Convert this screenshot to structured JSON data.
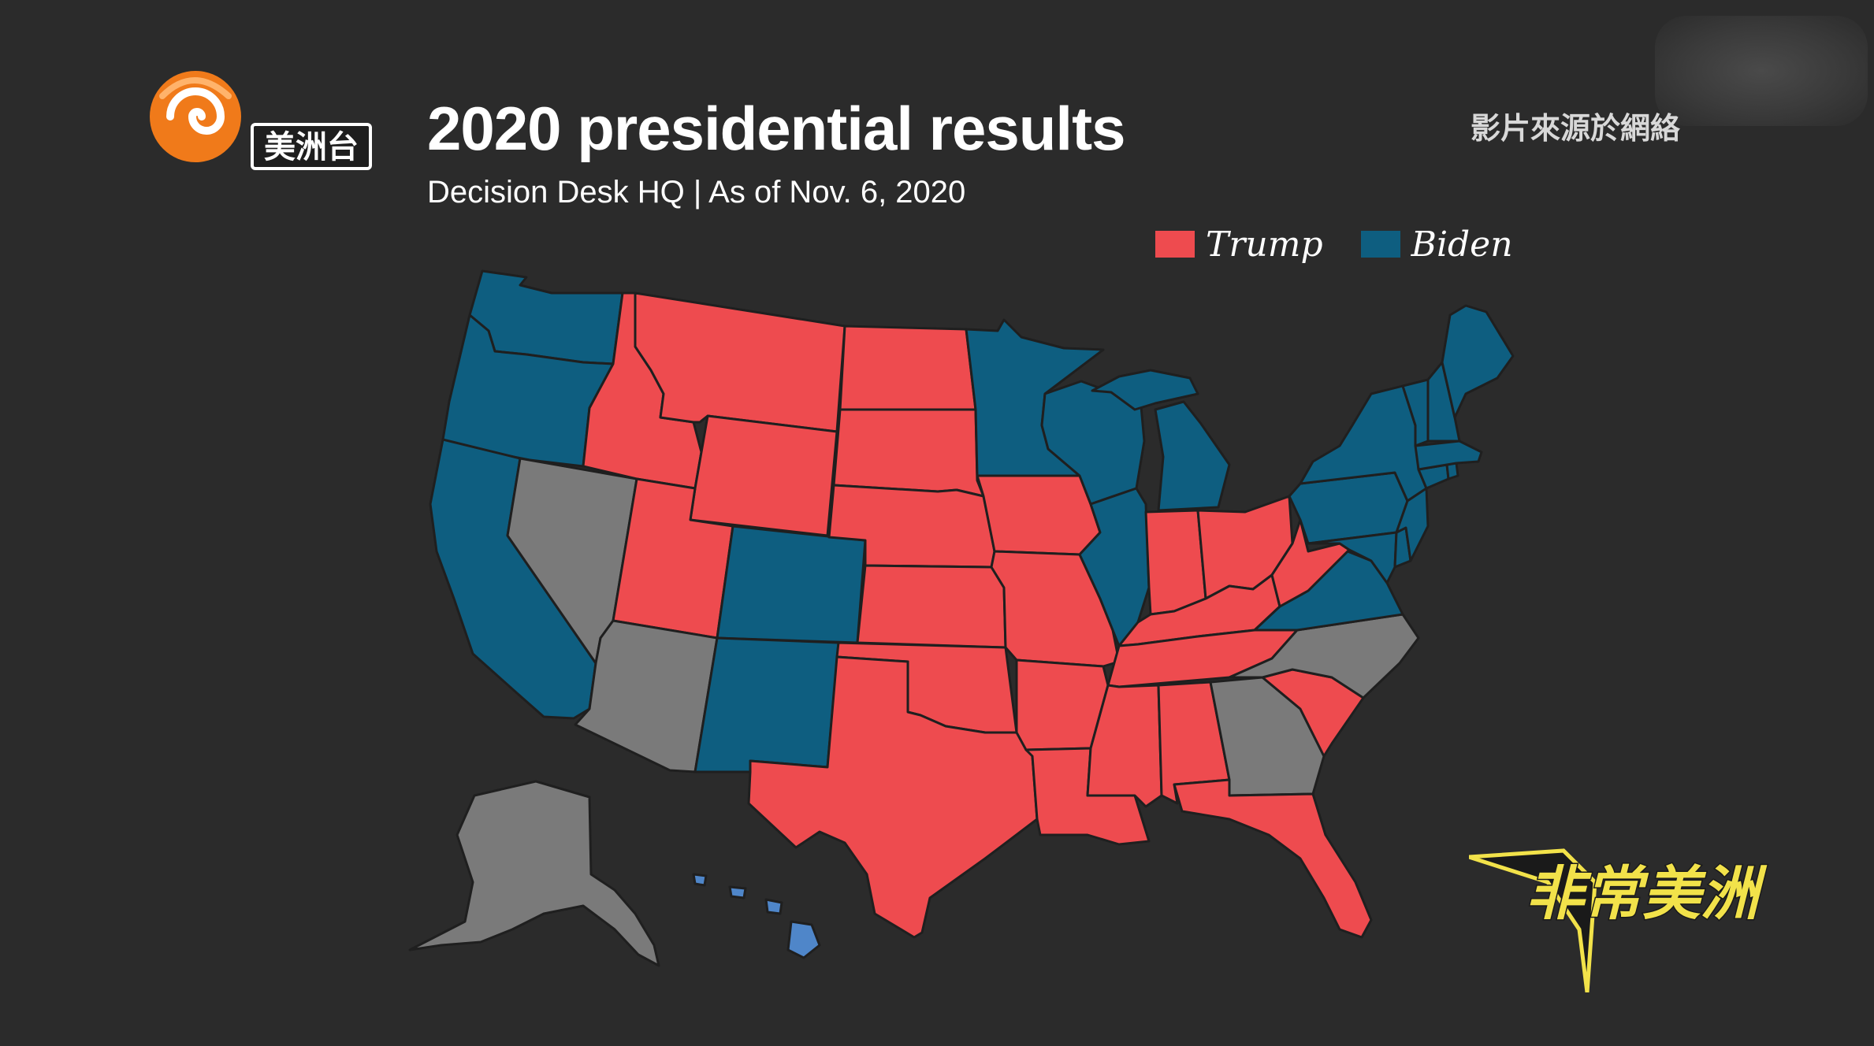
{
  "header": {
    "title": "2020 presidential results",
    "subtitle": "Decision Desk HQ | As of Nov. 6, 2020",
    "source_note": "影片來源於網絡"
  },
  "logos": {
    "channel": "美洲台",
    "program": "非常美洲"
  },
  "legend": [
    {
      "label": "Trump",
      "color": "#ee4b4f"
    },
    {
      "label": "Biden",
      "color": "#0e5e80"
    }
  ],
  "colors": {
    "trump": "#ee4b4f",
    "biden": "#0e5e80",
    "undecided": "#7a7a7a",
    "hawaii": "#4f86c9",
    "background": "#2b2b2b"
  },
  "states": [
    {
      "name": "Washington",
      "result": "biden"
    },
    {
      "name": "Oregon",
      "result": "biden"
    },
    {
      "name": "California",
      "result": "biden"
    },
    {
      "name": "Nevada",
      "result": "undecided"
    },
    {
      "name": "Idaho",
      "result": "trump"
    },
    {
      "name": "Montana",
      "result": "trump"
    },
    {
      "name": "Wyoming",
      "result": "trump"
    },
    {
      "name": "Utah",
      "result": "trump"
    },
    {
      "name": "Arizona",
      "result": "undecided"
    },
    {
      "name": "Colorado",
      "result": "biden"
    },
    {
      "name": "New Mexico",
      "result": "biden"
    },
    {
      "name": "North Dakota",
      "result": "trump"
    },
    {
      "name": "South Dakota",
      "result": "trump"
    },
    {
      "name": "Nebraska",
      "result": "trump"
    },
    {
      "name": "Kansas",
      "result": "trump"
    },
    {
      "name": "Oklahoma",
      "result": "trump"
    },
    {
      "name": "Texas",
      "result": "trump"
    },
    {
      "name": "Minnesota",
      "result": "biden"
    },
    {
      "name": "Iowa",
      "result": "trump"
    },
    {
      "name": "Missouri",
      "result": "trump"
    },
    {
      "name": "Arkansas",
      "result": "trump"
    },
    {
      "name": "Louisiana",
      "result": "trump"
    },
    {
      "name": "Wisconsin",
      "result": "biden"
    },
    {
      "name": "Illinois",
      "result": "biden"
    },
    {
      "name": "Michigan",
      "result": "biden"
    },
    {
      "name": "Indiana",
      "result": "trump"
    },
    {
      "name": "Ohio",
      "result": "trump"
    },
    {
      "name": "Kentucky",
      "result": "trump"
    },
    {
      "name": "Tennessee",
      "result": "trump"
    },
    {
      "name": "Mississippi",
      "result": "trump"
    },
    {
      "name": "Alabama",
      "result": "trump"
    },
    {
      "name": "Georgia",
      "result": "undecided"
    },
    {
      "name": "Florida",
      "result": "trump"
    },
    {
      "name": "South Carolina",
      "result": "trump"
    },
    {
      "name": "North Carolina",
      "result": "undecided"
    },
    {
      "name": "Virginia",
      "result": "biden"
    },
    {
      "name": "West Virginia",
      "result": "trump"
    },
    {
      "name": "Pennsylvania",
      "result": "biden"
    },
    {
      "name": "New York",
      "result": "biden"
    },
    {
      "name": "Maryland",
      "result": "biden"
    },
    {
      "name": "Delaware",
      "result": "biden"
    },
    {
      "name": "New Jersey",
      "result": "biden"
    },
    {
      "name": "Connecticut",
      "result": "biden"
    },
    {
      "name": "Rhode Island",
      "result": "biden"
    },
    {
      "name": "Massachusetts",
      "result": "biden"
    },
    {
      "name": "Vermont",
      "result": "biden"
    },
    {
      "name": "New Hampshire",
      "result": "biden"
    },
    {
      "name": "Maine",
      "result": "biden"
    },
    {
      "name": "Alaska",
      "result": "undecided"
    },
    {
      "name": "Hawaii",
      "result": "hawaii"
    }
  ]
}
